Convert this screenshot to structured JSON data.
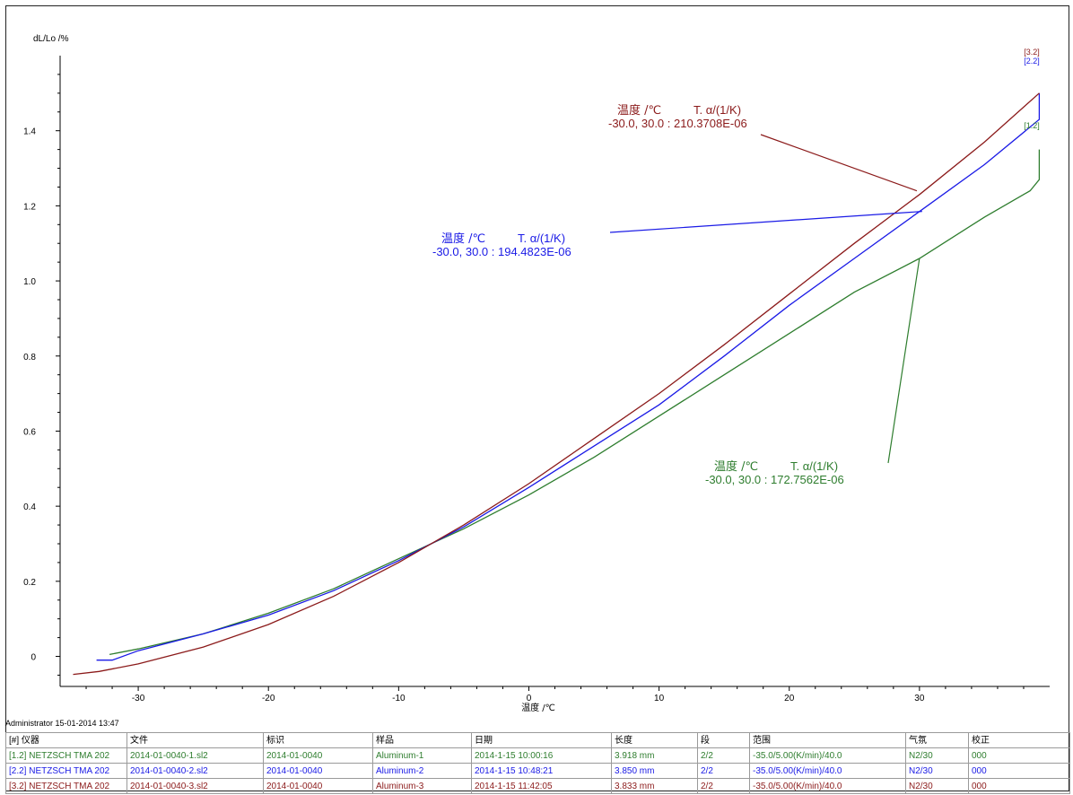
{
  "colors": {
    "c12": "#2e7d2e",
    "c22": "#1a1ae6",
    "c32": "#8b1a1a",
    "axis": "#000000"
  },
  "chart_data": {
    "type": "line",
    "title": "",
    "ylabel": "dL/Lo /%",
    "xlabel": "温度 /℃",
    "xlim": [
      -36,
      40
    ],
    "ylim": [
      -0.08,
      1.6
    ],
    "x_ticks": [
      -30,
      -20,
      -10,
      0,
      10,
      20,
      30
    ],
    "y_ticks": [
      0,
      0.2,
      0.4,
      0.6,
      0.8,
      1.0,
      1.2,
      1.4
    ],
    "x_tick_labels": [
      "-30",
      "-20",
      "-10",
      "0",
      "10",
      "20",
      "30"
    ],
    "y_tick_labels": [
      "0",
      "0.2",
      "0.4",
      "0.6",
      "0.8",
      "1.0",
      "1.2",
      "1.4"
    ],
    "legend": "none",
    "grid": false,
    "series": [
      {
        "name": "[1.2]",
        "color_key": "c12",
        "x": [
          -32.2,
          -30,
          -25,
          -20,
          -15,
          -10,
          -5,
          0,
          5,
          10,
          15,
          20,
          25,
          30,
          35,
          38.5,
          39.2,
          39.2
        ],
        "y": [
          0.005,
          0.02,
          0.06,
          0.115,
          0.18,
          0.26,
          0.34,
          0.43,
          0.53,
          0.64,
          0.75,
          0.86,
          0.97,
          1.06,
          1.17,
          1.24,
          1.27,
          1.35
        ]
      },
      {
        "name": "[2.2]",
        "color_key": "c22",
        "x": [
          -33.2,
          -32,
          -30,
          -25,
          -20,
          -15,
          -10,
          -5,
          0,
          5,
          10,
          15,
          20,
          25,
          30,
          35,
          39.2,
          39.2
        ],
        "y": [
          -0.01,
          -0.01,
          0.015,
          0.06,
          0.11,
          0.175,
          0.255,
          0.345,
          0.45,
          0.56,
          0.67,
          0.8,
          0.935,
          1.06,
          1.185,
          1.31,
          1.43,
          1.5
        ]
      },
      {
        "name": "[3.2]",
        "color_key": "c32",
        "x": [
          -35,
          -33,
          -30,
          -25,
          -20,
          -15,
          -10,
          -5,
          0,
          5,
          10,
          15,
          20,
          25,
          30,
          35,
          39.2
        ],
        "y": [
          -0.048,
          -0.04,
          -0.02,
          0.025,
          0.085,
          0.16,
          0.25,
          0.35,
          0.46,
          0.58,
          0.7,
          0.83,
          0.965,
          1.1,
          1.23,
          1.37,
          1.5
        ]
      }
    ],
    "end_labels": [
      {
        "text": "[3.2]",
        "color_key": "c32"
      },
      {
        "text": "[2.2]",
        "color_key": "c22"
      },
      {
        "text": "[1.2]",
        "color_key": "c12"
      }
    ],
    "annotations": [
      {
        "color_key": "c32",
        "line1_a": "温度 /℃",
        "line1_b": "T. α/(1/K)",
        "line2": "-30.0, 30.0 : 210.3708E-06",
        "target_x": 29.8,
        "target_y": 1.24
      },
      {
        "color_key": "c22",
        "line1_a": "温度 /℃",
        "line1_b": "T. α/(1/K)",
        "line2": "-30.0, 30.0 : 194.4823E-06",
        "target_x": 30.2,
        "target_y": 1.185
      },
      {
        "color_key": "c12",
        "line1_a": "温度 /℃",
        "line1_b": "T. α/(1/K)",
        "line2": "-30.0, 30.0 : 172.7562E-06",
        "target_x": 30.0,
        "target_y": 1.06
      }
    ]
  },
  "footer": {
    "user_timestamp": "Administrator   15-01-2014 13:47"
  },
  "table": {
    "headers": [
      "[#] 仪器",
      "文件",
      "标识",
      "样品",
      "日期",
      "长度",
      "段",
      "范围",
      "气氛",
      "校正"
    ],
    "rows": [
      {
        "color_key": "c12",
        "cells": [
          "[1.2] NETZSCH TMA 202",
          "2014-01-0040-1.sl2",
          "2014-01-0040",
          "Aluminum-1",
          "2014-1-15 10:00:16",
          "3.918 mm",
          "2/2",
          "-35.0/5.00(K/min)/40.0",
          "N2/30",
          "000"
        ]
      },
      {
        "color_key": "c22",
        "cells": [
          "[2.2] NETZSCH TMA 202",
          "2014-01-0040-2.sl2",
          "2014-01-0040",
          "Aluminum-2",
          "2014-1-15 10:48:21",
          "3.850 mm",
          "2/2",
          "-35.0/5.00(K/min)/40.0",
          "N2/30",
          "000"
        ]
      },
      {
        "color_key": "c32",
        "cells": [
          "[3.2] NETZSCH TMA 202",
          "2014-01-0040-3.sl2",
          "2014-01-0040",
          "Aluminum-3",
          "2014-1-15 11:42:05",
          "3.833 mm",
          "2/2",
          "-35.0/5.00(K/min)/40.0",
          "N2/30",
          "000"
        ]
      }
    ]
  }
}
